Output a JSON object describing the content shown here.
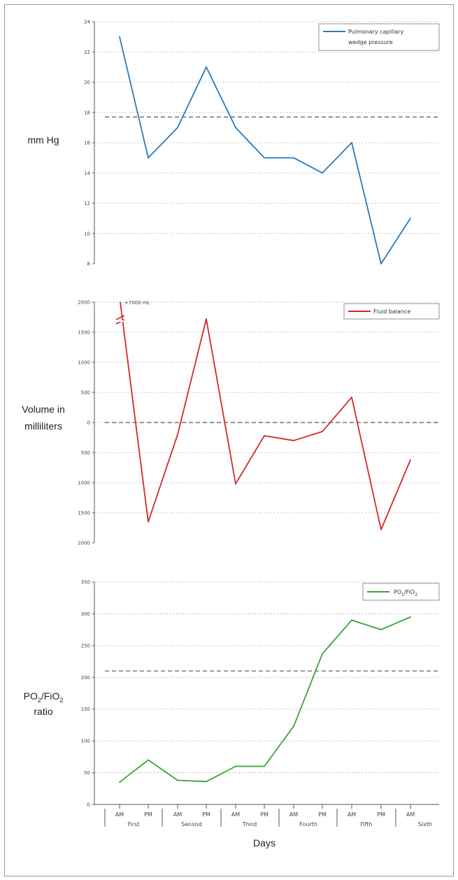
{
  "chart_data": [
    {
      "type": "line",
      "ylabel": "mm Hg",
      "ylim": [
        8,
        24
      ],
      "yticks": [
        "8",
        "10",
        "12",
        "14",
        "16",
        "18",
        "20",
        "22",
        "24"
      ],
      "reference_line": 17.7,
      "legend": [
        "Pulmonary capillary",
        "wedge pressure"
      ],
      "legend_position": "top-right",
      "color": "#2a7ab8",
      "grid": true,
      "series": [
        {
          "name": "Pulmonary capillary wedge pressure",
          "values": [
            23,
            15,
            17,
            21,
            17,
            15,
            15,
            14,
            16,
            8,
            11
          ]
        }
      ]
    },
    {
      "type": "line",
      "ylabel": "Volume in milliliters",
      "ylim": [
        -2000,
        2000
      ],
      "yticks": [
        "2000",
        "1500",
        "1000",
        "500",
        "0",
        "500",
        "1000",
        "1500",
        "2000"
      ],
      "reference_line": 0,
      "annotation": "+7000 mL",
      "legend": [
        "Fluid balance"
      ],
      "legend_position": "top-right",
      "color": "#d02a2a",
      "grid": true,
      "series": [
        {
          "name": "Fluid balance",
          "values": [
            1650,
            -1650,
            -200,
            1720,
            -1020,
            -220,
            -300,
            -150,
            420,
            -1780,
            -620
          ]
        }
      ]
    },
    {
      "type": "line",
      "ylabel": "PO2/FiO2 ratio",
      "ylim": [
        0,
        350
      ],
      "yticks": [
        "0",
        "50",
        "100",
        "150",
        "200",
        "250",
        "300",
        "350"
      ],
      "reference_line": 210,
      "legend": [
        "PO2/FiO2"
      ],
      "legend_position": "top-right",
      "color": "#3aa335",
      "grid": true,
      "series": [
        {
          "name": "PO2/FiO2",
          "values": [
            35,
            70,
            38,
            36,
            60,
            60,
            123,
            237,
            290,
            275,
            295
          ]
        }
      ]
    }
  ],
  "x_axis": {
    "ticks": [
      "AM",
      "PM",
      "AM",
      "PM",
      "AM",
      "PM",
      "AM",
      "PM",
      "AM",
      "PM",
      "AM"
    ],
    "days": [
      "First",
      "Second",
      "Third",
      "Fourth",
      "Fifth",
      "Sixth"
    ],
    "title": "Days"
  }
}
